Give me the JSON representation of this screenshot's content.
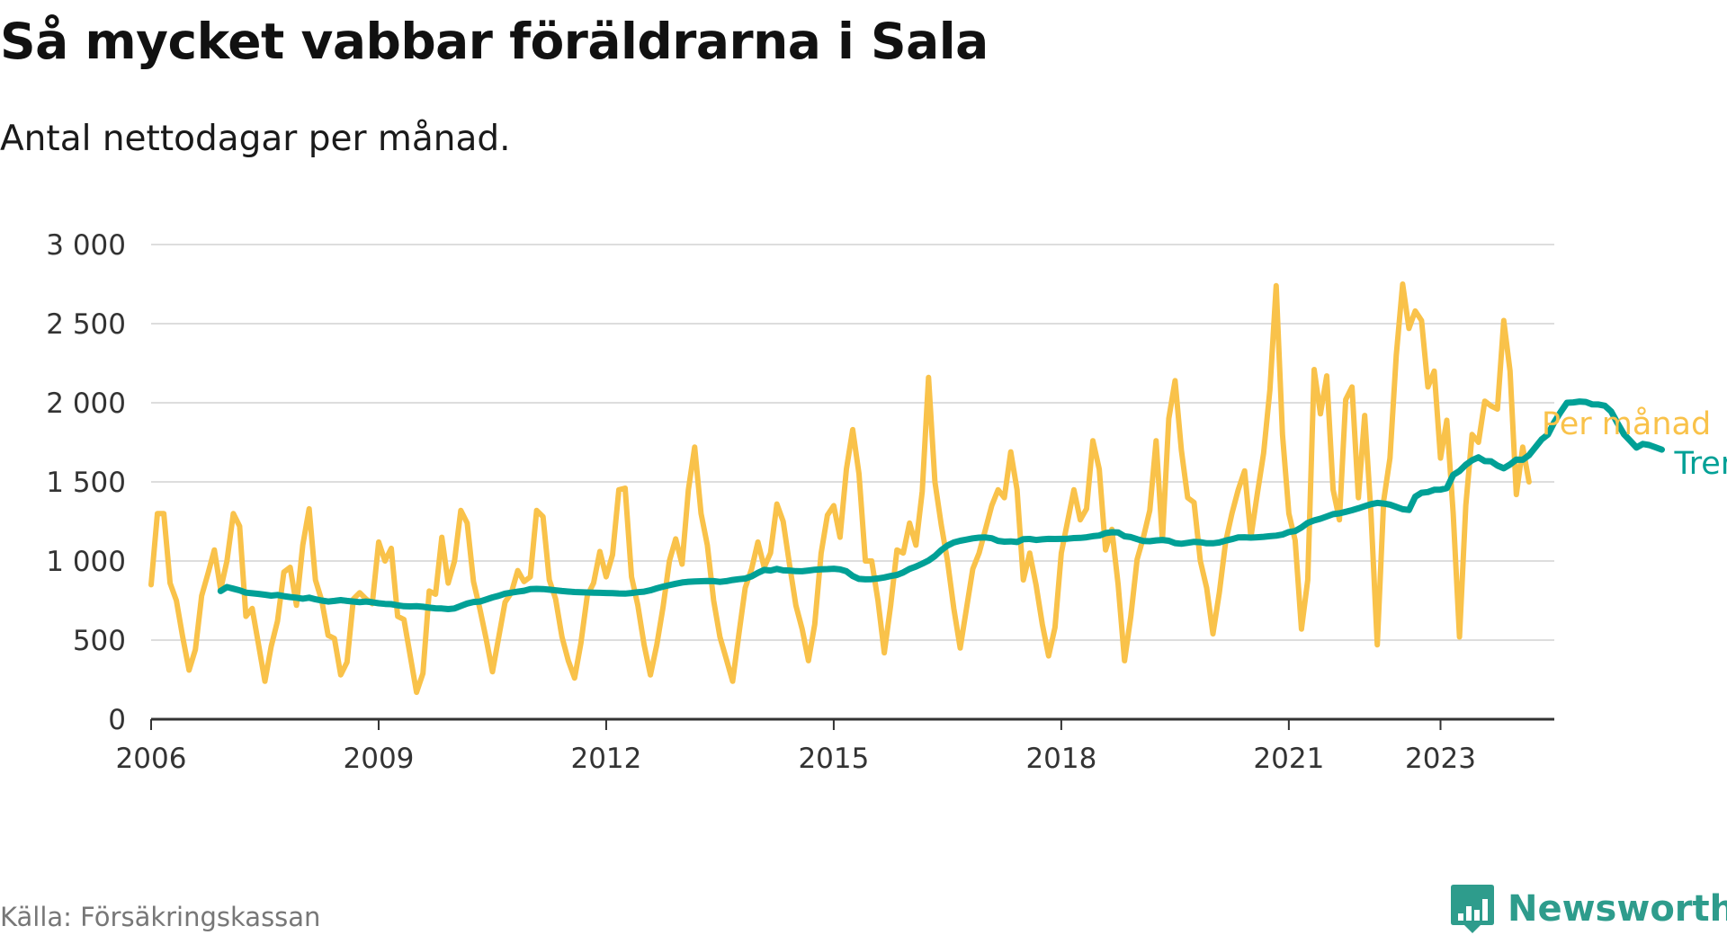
{
  "header": {
    "title": "Så mycket vabbar föräldrarna i Sala",
    "subtitle": "Antal nettodagar per månad."
  },
  "footer": {
    "source": "Källa: Försäkringskassan",
    "brand": "Newsworthy"
  },
  "colors": {
    "monthly": "#f9c24a",
    "trend": "#00a096",
    "grid": "#dddddd",
    "axis": "#333333",
    "brand": "#2e9c8c",
    "source_text": "#777777"
  },
  "icons": {
    "logo": "newsworthy-logo-icon"
  },
  "chart_data": {
    "type": "line",
    "title": "Så mycket vabbar föräldrarna i Sala",
    "subtitle": "Antal nettodagar per månad.",
    "xlabel": "",
    "ylabel": "",
    "ylim": [
      0,
      3000
    ],
    "xlim": [
      "2006-01",
      "2024-07"
    ],
    "yticks": [
      0,
      500,
      1000,
      1500,
      2000,
      2500,
      3000
    ],
    "ytick_labels": [
      "0",
      "500",
      "1 000",
      "1 500",
      "2 000",
      "2 500",
      "3 000"
    ],
    "xticks": [
      "2006-01",
      "2009-01",
      "2012-01",
      "2015-01",
      "2018-01",
      "2021-01",
      "2023-01"
    ],
    "xtick_labels": [
      "2006",
      "2009",
      "2012",
      "2015",
      "2018",
      "2021",
      "2023"
    ],
    "grid": "horizontal",
    "legend": "inline-right",
    "series": [
      {
        "name": "Per månad",
        "color": "#f9c24a",
        "start": "2006-01",
        "frequency": "monthly",
        "values": [
          850,
          1300,
          1300,
          860,
          750,
          520,
          310,
          440,
          780,
          920,
          1070,
          820,
          1000,
          1300,
          1220,
          650,
          700,
          470,
          240,
          460,
          620,
          930,
          960,
          720,
          1100,
          1330,
          880,
          750,
          530,
          510,
          280,
          360,
          760,
          800,
          760,
          730,
          1120,
          1000,
          1080,
          650,
          630,
          400,
          170,
          290,
          810,
          790,
          1150,
          860,
          1000,
          1320,
          1240,
          870,
          700,
          510,
          300,
          520,
          740,
          800,
          940,
          870,
          900,
          1320,
          1280,
          880,
          760,
          520,
          370,
          260,
          480,
          780,
          860,
          1060,
          900,
          1040,
          1450,
          1460,
          900,
          720,
          470,
          280,
          470,
          710,
          1000,
          1140,
          980,
          1450,
          1720,
          1300,
          1100,
          750,
          520,
          380,
          240,
          540,
          830,
          950,
          1120,
          960,
          1050,
          1360,
          1250,
          980,
          720,
          570,
          370,
          600,
          1050,
          1290,
          1350,
          1150,
          1580,
          1830,
          1550,
          1000,
          1000,
          750,
          420,
          720,
          1070,
          1050,
          1240,
          1100,
          1440,
          2160,
          1500,
          1230,
          1000,
          700,
          450,
          700,
          950,
          1050,
          1200,
          1350,
          1450,
          1400,
          1690,
          1450,
          880,
          1050,
          850,
          600,
          400,
          580,
          1050,
          1250,
          1450,
          1260,
          1330,
          1760,
          1580,
          1070,
          1200,
          850,
          370,
          650,
          1010,
          1150,
          1320,
          1760,
          1130,
          1900,
          2140,
          1700,
          1400,
          1370,
          1000,
          830,
          540,
          800,
          1120,
          1300,
          1450,
          1570,
          1150,
          1420,
          1680,
          2080,
          2740,
          1800,
          1300,
          1130,
          570,
          880,
          2210,
          1930,
          2170,
          1450,
          1260,
          2020,
          2100,
          1400,
          1920,
          1300,
          470,
          1380,
          1650,
          2300,
          2750,
          2470,
          2580,
          2520,
          2100,
          2200,
          1650,
          1890,
          1300,
          520,
          1350,
          1800,
          1750,
          2010,
          1980,
          1960,
          2520,
          2200,
          1420,
          1720,
          1500
        ]
      },
      {
        "name": "Trend",
        "color": "#00a096",
        "start": "2006-12",
        "frequency": "monthly",
        "values": [
          810,
          835,
          825,
          815,
          800,
          796,
          792,
          787,
          781,
          785,
          778,
          772,
          768,
          762,
          768,
          758,
          750,
          744,
          748,
          753,
          748,
          744,
          740,
          744,
          739,
          733,
          729,
          727,
          720,
          714,
          713,
          714,
          711,
          705,
          701,
          700,
          696,
          700,
          716,
          731,
          741,
          744,
          756,
          770,
          780,
          794,
          800,
          806,
          812,
          823,
          824,
          823,
          819,
          815,
          810,
          807,
          804,
          802,
          801,
          800,
          799,
          798,
          797,
          795,
          794,
          798,
          803,
          806,
          815,
          827,
          838,
          847,
          856,
          864,
          869,
          871,
          872,
          874,
          873,
          868,
          873,
          880,
          885,
          889,
          903,
          925,
          944,
          940,
          950,
          941,
          940,
          936,
          935,
          940,
          945,
          948,
          949,
          951,
          947,
          935,
          905,
          887,
          884,
          885,
          890,
          896,
          905,
          912,
          928,
          950,
          965,
          983,
          1003,
          1031,
          1069,
          1098,
          1117,
          1128,
          1135,
          1143,
          1148,
          1149,
          1144,
          1127,
          1122,
          1124,
          1120,
          1138,
          1139,
          1133,
          1137,
          1140,
          1139,
          1140,
          1141,
          1145,
          1146,
          1150,
          1157,
          1161,
          1176,
          1182,
          1180,
          1156,
          1151,
          1138,
          1126,
          1125,
          1130,
          1133,
          1128,
          1113,
          1109,
          1115,
          1121,
          1119,
          1112,
          1112,
          1117,
          1129,
          1138,
          1149,
          1150,
          1148,
          1150,
          1153,
          1157,
          1160,
          1167,
          1183,
          1189,
          1212,
          1241,
          1256,
          1267,
          1281,
          1296,
          1301,
          1311,
          1321,
          1333,
          1346,
          1359,
          1367,
          1363,
          1356,
          1342,
          1327,
          1323,
          1406,
          1431,
          1436,
          1450,
          1451,
          1460,
          1544,
          1569,
          1608,
          1637,
          1655,
          1631,
          1630,
          1603,
          1586,
          1610,
          1641,
          1640,
          1669,
          1718,
          1768,
          1800,
          1878,
          1941,
          2000,
          2002,
          2008,
          2005,
          1990,
          1989,
          1981,
          1945,
          1871,
          1802,
          1760,
          1717,
          1740,
          1733,
          1719,
          1704
        ]
      }
    ]
  }
}
